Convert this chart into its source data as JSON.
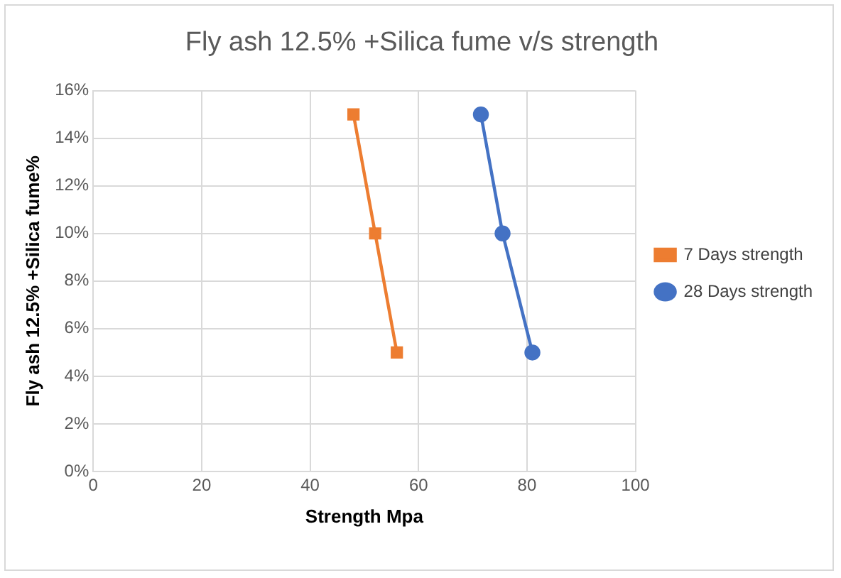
{
  "chart_data": {
    "type": "line",
    "title": "Fly ash 12.5% +Silica fume v/s strength",
    "xlabel": "Strength Mpa",
    "ylabel": "Fly ash 12.5% +Silica fume%",
    "xlim": [
      0,
      100
    ],
    "xticks": [
      0,
      20,
      40,
      60,
      80,
      100
    ],
    "ylim": [
      0,
      16
    ],
    "yticks": [
      {
        "value": 0,
        "label": "0%"
      },
      {
        "value": 2,
        "label": "2%"
      },
      {
        "value": 4,
        "label": "4%"
      },
      {
        "value": 6,
        "label": "6%"
      },
      {
        "value": 8,
        "label": "8%"
      },
      {
        "value": 10,
        "label": "10%"
      },
      {
        "value": 12,
        "label": "12%"
      },
      {
        "value": 14,
        "label": "14%"
      },
      {
        "value": 16,
        "label": "16%"
      }
    ],
    "series": [
      {
        "name": "7 Days strength",
        "color": "#ed7d31",
        "marker": "square",
        "x": [
          48,
          52,
          56
        ],
        "values": [
          15,
          10,
          5
        ]
      },
      {
        "name": "28 Days strength",
        "color": "#4472c4",
        "marker": "circle",
        "x": [
          71.5,
          75.5,
          81
        ],
        "values": [
          15,
          10,
          5
        ]
      }
    ],
    "grid": true,
    "legend": "right",
    "line_style": "solid"
  }
}
